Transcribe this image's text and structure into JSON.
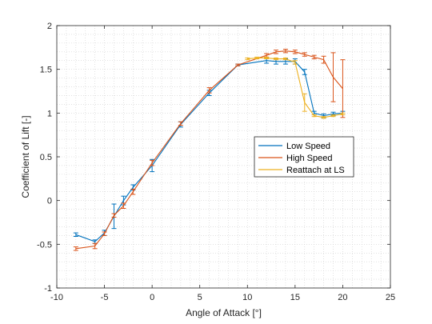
{
  "chart_data": {
    "type": "line",
    "title": "",
    "xlabel": "Angle of Attack [°]",
    "ylabel": "Coefficient of Lift [-]",
    "xlim": [
      -10,
      25
    ],
    "ylim": [
      -1,
      2
    ],
    "xticks": [
      -10,
      -5,
      0,
      5,
      10,
      15,
      20,
      25
    ],
    "yticks": [
      -1,
      -0.5,
      0,
      0.5,
      1,
      1.5,
      2
    ],
    "grid": "minor dotted",
    "legend_position": "inside-right",
    "series": [
      {
        "name": "Low Speed",
        "color": "#0072BD",
        "x": [
          -8,
          -6,
          -5,
          -4,
          -3,
          -2,
          0,
          3,
          6,
          9,
          12,
          13,
          14,
          15,
          16,
          17,
          18,
          19,
          20
        ],
        "y": [
          -0.39,
          -0.47,
          -0.37,
          -0.18,
          0.0,
          0.15,
          0.4,
          0.87,
          1.23,
          1.55,
          1.6,
          1.59,
          1.59,
          1.59,
          1.47,
          1.0,
          0.97,
          0.99,
          1.0
        ],
        "err": [
          0.02,
          0.02,
          0.03,
          0.14,
          0.05,
          0.03,
          0.07,
          0.03,
          0.03,
          0.01,
          0.03,
          0.03,
          0.03,
          0.03,
          0.03,
          0.02,
          0.02,
          0.02,
          0.02
        ]
      },
      {
        "name": "High Speed",
        "color": "#D95319",
        "x": [
          -8,
          -6,
          -5,
          -4,
          -3,
          -2,
          0,
          3,
          6,
          9,
          12,
          13,
          14,
          15,
          16,
          17,
          18,
          19,
          20
        ],
        "y": [
          -0.55,
          -0.52,
          -0.38,
          -0.17,
          -0.06,
          0.1,
          0.43,
          0.88,
          1.26,
          1.55,
          1.66,
          1.7,
          1.71,
          1.7,
          1.67,
          1.64,
          1.61,
          1.41,
          1.28
        ],
        "err": [
          0.02,
          0.03,
          0.02,
          0.02,
          0.03,
          0.03,
          0.03,
          0.02,
          0.03,
          0.01,
          0.02,
          0.02,
          0.02,
          0.02,
          0.02,
          0.02,
          0.04,
          0.28,
          0.33
        ]
      },
      {
        "name": "Reattach at LS",
        "color": "#EDB120",
        "x": [
          10,
          11,
          12,
          13,
          14,
          15,
          16,
          17,
          18,
          19,
          20
        ],
        "y": [
          1.62,
          1.63,
          1.63,
          1.62,
          1.62,
          1.58,
          1.12,
          0.97,
          0.95,
          0.97,
          0.99
        ],
        "err": [
          0.01,
          0.01,
          0.01,
          0.01,
          0.01,
          0.02,
          0.1,
          0.01,
          0.01,
          0.01,
          0.01
        ]
      }
    ]
  }
}
